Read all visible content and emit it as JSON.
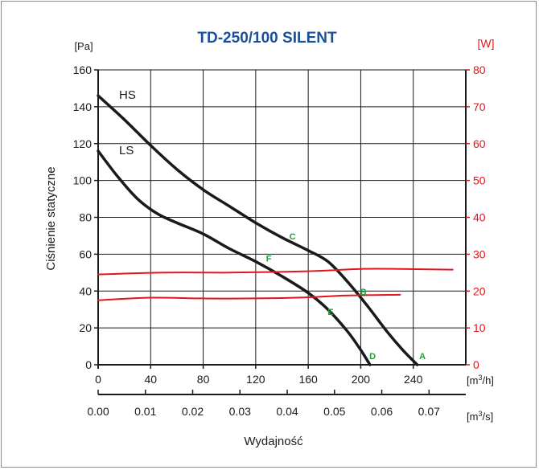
{
  "chart_data": {
    "type": "line",
    "title": "TD-250/100 SILENT",
    "colors": {
      "title": "#1a4f9c",
      "power": "#e0161b",
      "curve": "#1a1a1a",
      "point": "#1f9e3a",
      "grid": "#1a1a1a"
    },
    "left_axis": {
      "unit": "[Pa]",
      "label": "Ciśnienie statyczne",
      "ylim": [
        0,
        160
      ],
      "ticks": [
        0,
        20,
        40,
        60,
        80,
        100,
        120,
        140,
        160
      ],
      "tick_labels": [
        "0",
        "20",
        "40",
        "60",
        "80",
        "100",
        "120",
        "140",
        "160"
      ]
    },
    "right_axis": {
      "unit": "[W]",
      "ylim": [
        0,
        80
      ],
      "ticks": [
        0,
        10,
        20,
        30,
        40,
        50,
        60,
        70,
        80
      ],
      "tick_labels": [
        "0",
        "10",
        "20",
        "30",
        "40",
        "50",
        "60",
        "70",
        "80"
      ]
    },
    "x_axis": {
      "unit_pre": "[m",
      "unit_sup": "3",
      "unit_post": "/h]",
      "xlim": [
        0,
        280
      ],
      "ticks": [
        0,
        40,
        80,
        120,
        160,
        200,
        240
      ],
      "tick_labels": [
        "0",
        "40",
        "80",
        "120",
        "160",
        "200",
        "240"
      ]
    },
    "x_axis2": {
      "unit_pre": "[m",
      "unit_sup": "3",
      "unit_post": "/s]",
      "ticks": [
        0.0,
        0.01,
        0.02,
        0.03,
        0.04,
        0.05,
        0.06,
        0.07
      ],
      "tick_labels": [
        "0.00",
        "0.01",
        "0.02",
        "0.03",
        "0.04",
        "0.05",
        "0.06",
        "0.07"
      ]
    },
    "xlabel": "Wydajność",
    "grid": true,
    "series": [
      {
        "name": "HS",
        "axis": "left",
        "points": [
          [
            0,
            146
          ],
          [
            20,
            133
          ],
          [
            40,
            119
          ],
          [
            60,
            106
          ],
          [
            80,
            95
          ],
          [
            100,
            86
          ],
          [
            120,
            77
          ],
          [
            140,
            69
          ],
          [
            160,
            62
          ],
          [
            175,
            56
          ],
          [
            190,
            45
          ],
          [
            205,
            32
          ],
          [
            220,
            18
          ],
          [
            232,
            8
          ],
          [
            243,
            0
          ]
        ]
      },
      {
        "name": "LS",
        "axis": "left",
        "points": [
          [
            0,
            116
          ],
          [
            15,
            102
          ],
          [
            30,
            90
          ],
          [
            45,
            82
          ],
          [
            60,
            77
          ],
          [
            80,
            71
          ],
          [
            100,
            63
          ],
          [
            120,
            56
          ],
          [
            140,
            48
          ],
          [
            160,
            39
          ],
          [
            175,
            30
          ],
          [
            190,
            18
          ],
          [
            200,
            8
          ],
          [
            207,
            0
          ]
        ]
      },
      {
        "axis": "right",
        "points": [
          [
            0,
            24.5
          ],
          [
            50,
            25
          ],
          [
            100,
            25
          ],
          [
            140,
            25.2
          ],
          [
            170,
            25.5
          ],
          [
            200,
            26
          ],
          [
            230,
            26
          ],
          [
            270,
            25.8
          ]
        ]
      },
      {
        "axis": "right",
        "points": [
          [
            0,
            17.5
          ],
          [
            40,
            18.2
          ],
          [
            80,
            18
          ],
          [
            120,
            18
          ],
          [
            160,
            18.3
          ],
          [
            190,
            18.8
          ],
          [
            230,
            19
          ]
        ]
      }
    ],
    "annotations": [
      {
        "label": "A",
        "x": 247,
        "y": 3
      },
      {
        "label": "B",
        "x": 202,
        "y": 38
      },
      {
        "label": "C",
        "x": 148,
        "y": 68
      },
      {
        "label": "D",
        "x": 209,
        "y": 3
      },
      {
        "label": "E",
        "x": 177,
        "y": 27
      },
      {
        "label": "F",
        "x": 130,
        "y": 56
      }
    ]
  }
}
